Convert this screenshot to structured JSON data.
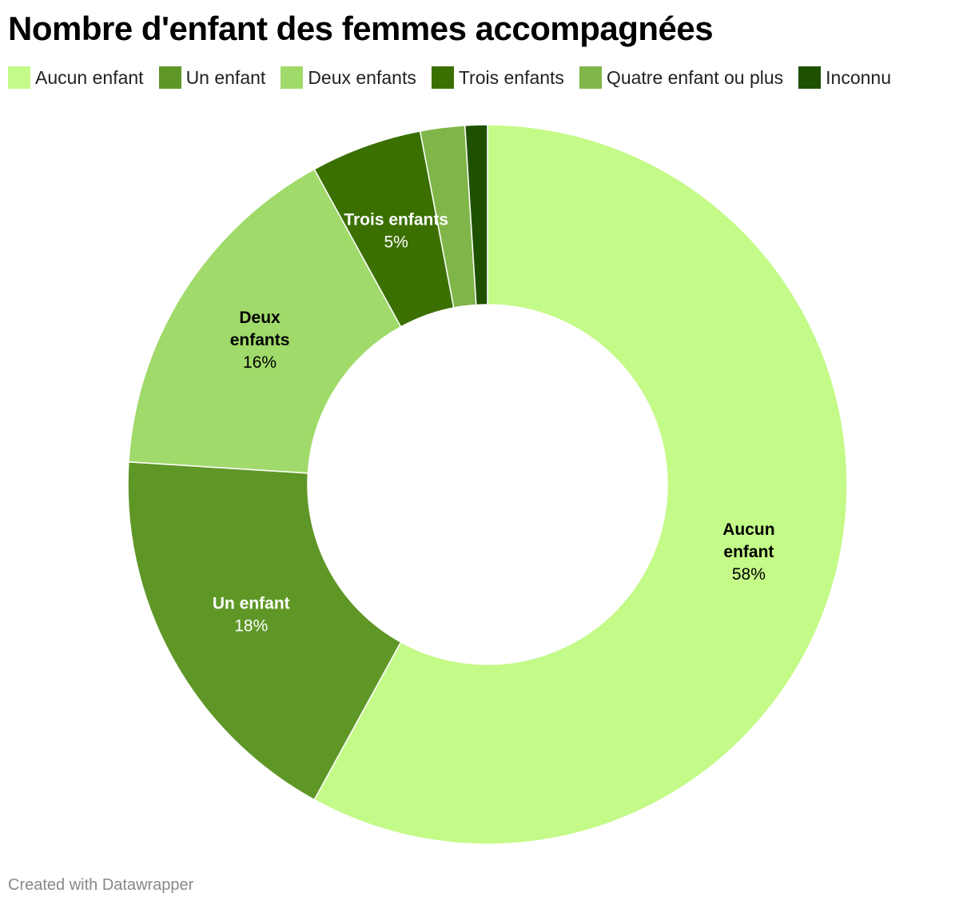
{
  "title": "Nombre d'enfant des femmes accompagnées",
  "footer": "Created with Datawrapper",
  "chart_data": {
    "type": "pie",
    "donut": true,
    "title": "Nombre d'enfant des femmes accompagnées",
    "legend_position": "top-left",
    "slices": [
      {
        "label": "Aucun enfant",
        "value": 58,
        "color": "#c4fa88",
        "text_color": "#000000",
        "label_lines": [
          "Aucun",
          "enfant"
        ],
        "value_label": "58%",
        "show_label": true
      },
      {
        "label": "Un enfant",
        "value": 18,
        "color": "#5f9727",
        "text_color": "#ffffff",
        "label_lines": [
          "Un enfant"
        ],
        "value_label": "18%",
        "show_label": true
      },
      {
        "label": "Deux enfants",
        "value": 16,
        "color": "#a0da6a",
        "text_color": "#000000",
        "label_lines": [
          "Deux",
          "enfants"
        ],
        "value_label": "16%",
        "show_label": true
      },
      {
        "label": "Trois enfants",
        "value": 5,
        "color": "#3b7000",
        "text_color": "#ffffff",
        "label_lines": [
          "Trois enfants"
        ],
        "value_label": "5%",
        "show_label": true
      },
      {
        "label": "Quatre enfant ou plus",
        "value": 2,
        "color": "#80b649",
        "text_color": "#000000",
        "label_lines": [],
        "value_label": "",
        "show_label": false
      },
      {
        "label": "Inconnu",
        "value": 1,
        "color": "#1d5100",
        "text_color": "#ffffff",
        "label_lines": [],
        "value_label": "",
        "show_label": false
      }
    ]
  }
}
